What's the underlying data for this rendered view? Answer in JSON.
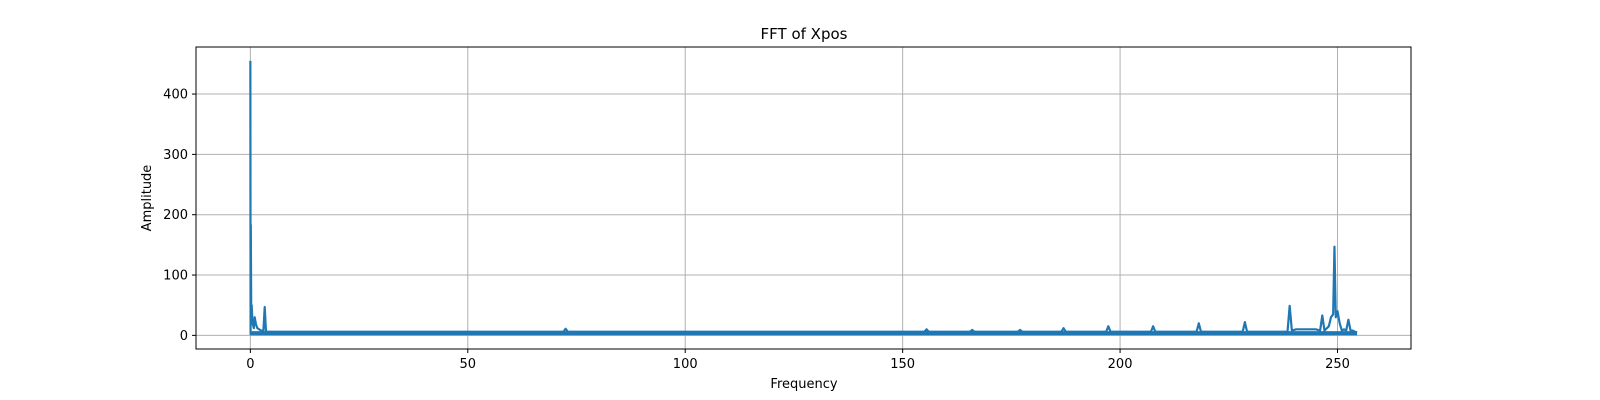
{
  "chart_data": {
    "type": "line",
    "title": "FFT of Xpos",
    "xlabel": "Frequency",
    "ylabel": "Amplitude",
    "xlim": [
      -12.5,
      266.9
    ],
    "ylim": [
      -22.6,
      478
    ],
    "xticks": [
      0,
      50,
      100,
      150,
      200,
      250
    ],
    "yticks": [
      0,
      100,
      200,
      300,
      400
    ],
    "grid": true,
    "legend": "none",
    "color": "#1f77b4",
    "noise_floor": {
      "x_min": 0,
      "x_max": 254.5,
      "low": 0,
      "high": 7
    },
    "series": [
      {
        "x": [
          0,
          0.05,
          0.1,
          0.2,
          0.3,
          0.5,
          0.8,
          1.0,
          1.3,
          1.6,
          2.0,
          2.5,
          3.0,
          3.3,
          3.6,
          4.0,
          5,
          10,
          20,
          30,
          40,
          50,
          60,
          70,
          72,
          72.5,
          73,
          80,
          90,
          100,
          110,
          120,
          130,
          140,
          150,
          155,
          155.5,
          156,
          160,
          165.5,
          166,
          166.5,
          176.5,
          177,
          177.5,
          186.5,
          187,
          187.5,
          196.8,
          197.3,
          197.8,
          207.1,
          207.6,
          208.1,
          217.6,
          218.1,
          218.6,
          228.2,
          228.7,
          229.2,
          238.5,
          239,
          239.5,
          240.5,
          245,
          246,
          246.5,
          247,
          248,
          248.5,
          249,
          249.3,
          249.6,
          250,
          250.5,
          251,
          251.5,
          252,
          252.5,
          253,
          253.5,
          254,
          254.5
        ],
        "y": [
          455,
          2,
          183,
          35,
          50,
          20,
          12,
          30,
          18,
          12,
          10,
          8,
          8,
          47,
          6,
          6,
          6,
          6,
          6,
          6,
          6,
          6,
          6,
          6,
          6,
          11,
          6,
          6,
          6,
          6,
          6,
          6,
          6,
          6,
          6,
          6,
          10,
          6,
          6,
          6,
          9,
          6,
          6,
          9,
          6,
          6,
          12,
          6,
          6,
          15,
          6,
          6,
          15,
          6,
          6,
          20,
          6,
          6,
          22,
          6,
          6,
          49,
          8,
          10,
          10,
          8,
          33,
          8,
          15,
          30,
          35,
          147,
          30,
          40,
          20,
          8,
          10,
          8,
          26,
          8,
          8,
          6,
          5
        ]
      }
    ]
  }
}
